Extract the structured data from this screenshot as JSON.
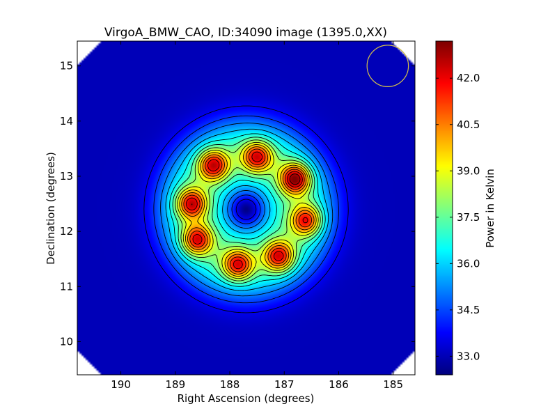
{
  "chart_data": {
    "type": "heatmap",
    "title": "VirgoA_BMW_CAO, ID:34090 image (1395.0,XX)",
    "xlabel": "Right Ascension (degrees)",
    "ylabel": "Declination (degrees)",
    "x_ticks": [
      "190",
      "189",
      "188",
      "187",
      "186",
      "185"
    ],
    "x_tick_values": [
      190,
      189,
      188,
      187,
      186,
      185
    ],
    "y_ticks": [
      "10",
      "11",
      "12",
      "13",
      "14",
      "15"
    ],
    "y_tick_values": [
      10,
      11,
      12,
      13,
      14,
      15
    ],
    "xlim": [
      190.8,
      184.6
    ],
    "ylim": [
      9.4,
      15.45
    ],
    "colorbar": {
      "label": "Power in Kelvin",
      "ticks": [
        "33.0",
        "34.5",
        "36.0",
        "37.5",
        "39.0",
        "40.5",
        "42.0"
      ],
      "tick_values": [
        33.0,
        34.5,
        36.0,
        37.5,
        39.0,
        40.5,
        42.0
      ],
      "range": [
        32.4,
        43.2
      ],
      "colormap": "jet"
    },
    "background_level": 33.0,
    "central_spot": {
      "ra": 187.7,
      "dec": 12.4,
      "value": 33.5
    },
    "peaks": [
      {
        "ra": 188.7,
        "dec": 12.5,
        "value": 42.2
      },
      {
        "ra": 188.3,
        "dec": 13.2,
        "value": 42.2
      },
      {
        "ra": 187.5,
        "dec": 13.35,
        "value": 42.0
      },
      {
        "ra": 186.8,
        "dec": 12.95,
        "value": 43.0
      },
      {
        "ra": 186.6,
        "dec": 12.2,
        "value": 41.8
      },
      {
        "ra": 187.1,
        "dec": 11.55,
        "value": 42.0
      },
      {
        "ra": 187.85,
        "dec": 11.4,
        "value": 41.9
      },
      {
        "ra": 188.6,
        "dec": 11.85,
        "value": 42.0
      }
    ],
    "beam_marker": {
      "ra": 185.1,
      "dec": 15.0,
      "radius_deg": 0.38,
      "color": "#d6c24a"
    },
    "grid": false
  }
}
